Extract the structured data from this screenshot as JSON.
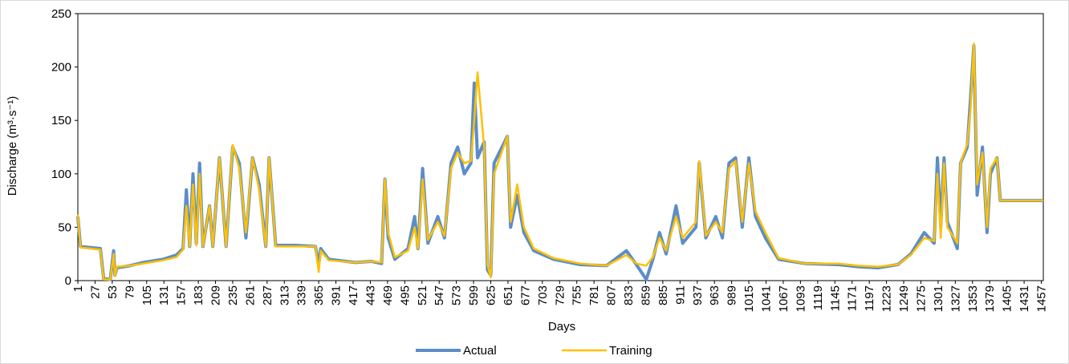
{
  "chart_data": {
    "type": "line",
    "x_label": "Days",
    "y_label": "Discharge (m³·s⁻¹)",
    "xlim": [
      1,
      1460
    ],
    "ylim": [
      0,
      250
    ],
    "yticks": [
      0,
      50,
      100,
      150,
      200,
      250
    ],
    "xticks": [
      1,
      27,
      53,
      79,
      105,
      131,
      157,
      183,
      209,
      235,
      261,
      287,
      313,
      339,
      365,
      391,
      417,
      443,
      469,
      495,
      521,
      547,
      573,
      599,
      625,
      651,
      677,
      703,
      729,
      755,
      781,
      807,
      833,
      859,
      885,
      911,
      937,
      963,
      989,
      1015,
      1041,
      1067,
      1093,
      1119,
      1145,
      1171,
      1197,
      1223,
      1249,
      1275,
      1301,
      1327,
      1353,
      1379,
      1405,
      1431,
      1457
    ],
    "legend": "bottom",
    "x": [
      1,
      5,
      20,
      35,
      40,
      50,
      55,
      57,
      60,
      80,
      100,
      130,
      150,
      160,
      165,
      170,
      175,
      180,
      185,
      190,
      200,
      205,
      215,
      225,
      235,
      245,
      255,
      265,
      275,
      285,
      290,
      300,
      330,
      360,
      365,
      368,
      380,
      420,
      445,
      460,
      465,
      470,
      480,
      500,
      510,
      515,
      522,
      530,
      545,
      555,
      565,
      575,
      585,
      595,
      600,
      605,
      615,
      620,
      625,
      630,
      650,
      655,
      665,
      675,
      690,
      720,
      760,
      800,
      830,
      845,
      860,
      870,
      880,
      890,
      905,
      915,
      935,
      940,
      950,
      965,
      975,
      985,
      995,
      1005,
      1015,
      1025,
      1040,
      1060,
      1100,
      1150,
      1180,
      1210,
      1240,
      1260,
      1280,
      1295,
      1300,
      1305,
      1310,
      1315,
      1330,
      1335,
      1345,
      1350,
      1355,
      1360,
      1368,
      1375,
      1380,
      1390,
      1395,
      1460
    ],
    "series": [
      {
        "name": "Actual",
        "color": "#5b8dc8",
        "width": 4,
        "values": [
          60,
          32,
          31,
          30,
          2,
          1,
          28,
          5,
          12,
          14,
          17,
          20,
          24,
          30,
          85,
          32,
          100,
          35,
          110,
          32,
          70,
          32,
          115,
          32,
          125,
          110,
          40,
          115,
          90,
          32,
          115,
          33,
          33,
          32,
          15,
          30,
          20,
          17,
          18,
          16,
          95,
          40,
          20,
          30,
          60,
          30,
          105,
          35,
          60,
          40,
          110,
          125,
          100,
          110,
          185,
          115,
          130,
          10,
          5,
          110,
          135,
          50,
          80,
          45,
          28,
          20,
          15,
          14,
          28,
          15,
          1,
          20,
          45,
          25,
          70,
          35,
          50,
          110,
          40,
          60,
          40,
          110,
          115,
          50,
          115,
          60,
          40,
          20,
          16,
          15,
          13,
          12,
          15,
          25,
          45,
          35,
          115,
          50,
          115,
          55,
          30,
          110,
          125,
          170,
          220,
          80,
          125,
          45,
          100,
          115,
          75,
          75
        ]
      },
      {
        "name": "Training",
        "color": "#ffc000",
        "width": 2.5,
        "values": [
          62,
          31,
          30,
          29,
          1,
          1,
          25,
          4,
          13,
          14,
          16,
          19,
          22,
          29,
          70,
          32,
          90,
          33,
          100,
          32,
          70,
          32,
          115,
          32,
          127,
          105,
          45,
          115,
          85,
          32,
          115,
          32,
          32,
          32,
          8,
          28,
          19,
          17,
          18,
          17,
          95,
          45,
          22,
          28,
          50,
          30,
          95,
          38,
          55,
          42,
          105,
          120,
          110,
          112,
          150,
          195,
          125,
          15,
          3,
          100,
          135,
          55,
          90,
          50,
          30,
          21,
          16,
          14,
          24,
          16,
          14,
          22,
          40,
          28,
          60,
          40,
          55,
          112,
          42,
          55,
          45,
          105,
          112,
          55,
          110,
          65,
          45,
          21,
          16,
          16,
          14,
          13,
          15,
          24,
          40,
          37,
          100,
          40,
          110,
          50,
          35,
          110,
          128,
          160,
          222,
          90,
          120,
          50,
          105,
          115,
          75,
          75
        ]
      }
    ]
  }
}
